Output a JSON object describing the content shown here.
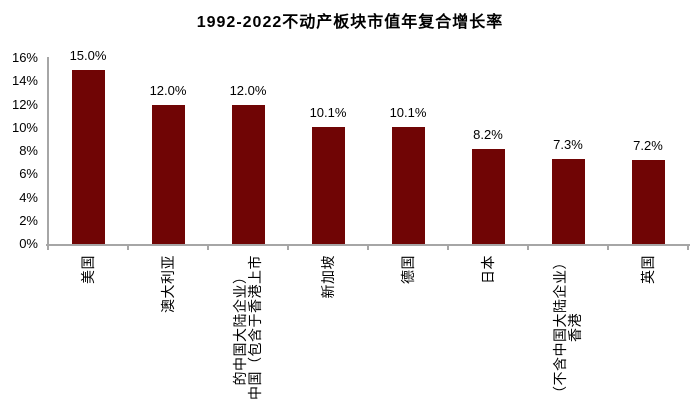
{
  "chart_data": {
    "type": "bar",
    "title": "1992-2022不动产板块市值年复合增长率",
    "categories": [
      "美国",
      "澳大利亚",
      "中国（包含于香港上市的中国大陆企业）",
      "新加坡",
      "德国",
      "日本",
      "香港（不含中国大陆企业）",
      "英国"
    ],
    "category_lines": [
      [
        "美国"
      ],
      [
        "澳大利亚"
      ],
      [
        "中国（包含于香港上市",
        "的中国大陆企业）"
      ],
      [
        "新加坡"
      ],
      [
        "德国"
      ],
      [
        "日本"
      ],
      [
        "香港",
        "（不含中国大陆企业）"
      ],
      [
        "英国"
      ]
    ],
    "values": [
      15.0,
      12.0,
      12.0,
      10.1,
      10.1,
      8.2,
      7.3,
      7.2
    ],
    "value_labels": [
      "15.0%",
      "12.0%",
      "12.0%",
      "10.1%",
      "10.1%",
      "8.2%",
      "7.3%",
      "7.2%"
    ],
    "yticks": [
      "0%",
      "2%",
      "4%",
      "6%",
      "8%",
      "10%",
      "12%",
      "14%",
      "16%"
    ],
    "ylim": [
      0,
      16
    ],
    "ytick_step": 2,
    "xlabel": "",
    "ylabel": "",
    "grid": false,
    "legend": "none",
    "bar_color": "#700505",
    "axis_color": "#a6a6a6",
    "text_color": "#000000"
  }
}
